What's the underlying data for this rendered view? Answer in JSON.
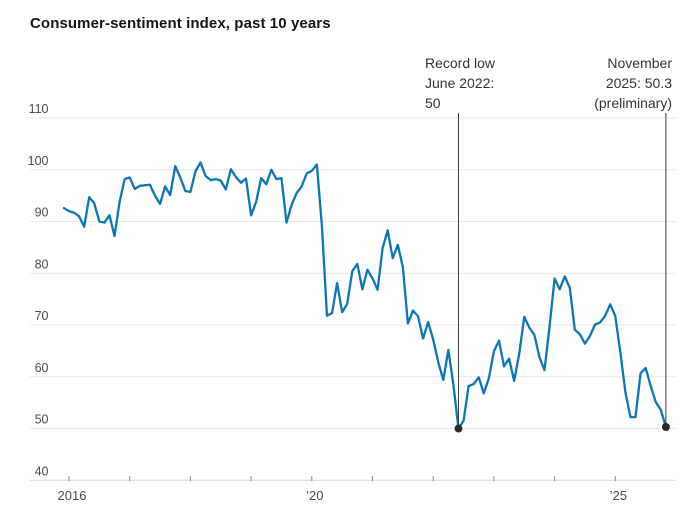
{
  "title": "Consumer-sentiment index, past 10 years",
  "colors": {
    "line": "#0f76b2",
    "grid": "#e9e9e9",
    "axis_bottom": "#d8d8d8",
    "tick": "#8c8c8c",
    "axis_label": "#4a4a4a",
    "marker": "#2b2b2b",
    "annotation_line": "#3a3a3a"
  },
  "chart_data": {
    "type": "line",
    "title": "Consumer-sentiment index, past 10 years",
    "xlabel": "",
    "ylabel": "",
    "ylim": [
      40,
      110
    ],
    "grid": "horizontal",
    "legend": "none",
    "x_start_month": "2015-12",
    "x_frequency": "monthly",
    "yticks": [
      110,
      100,
      90,
      80,
      70,
      60,
      50,
      40
    ],
    "xticks": {
      "years": [
        2016,
        2017,
        2018,
        2019,
        2020,
        2021,
        2022,
        2023,
        2024,
        2025
      ],
      "labels": [
        "2016",
        "",
        "",
        "",
        "’20",
        "",
        "",
        "",
        "",
        "’25"
      ]
    },
    "values": [
      92.6,
      92.0,
      91.7,
      91.0,
      89.0,
      94.7,
      93.5,
      90.0,
      89.8,
      91.2,
      87.2,
      93.8,
      98.2,
      98.5,
      96.3,
      96.9,
      97.0,
      97.1,
      95.0,
      93.4,
      96.8,
      95.1,
      100.7,
      98.5,
      95.9,
      95.7,
      99.7,
      101.4,
      98.8,
      98.0,
      98.2,
      97.9,
      96.2,
      100.1,
      98.6,
      97.5,
      98.3,
      91.2,
      93.8,
      98.4,
      97.2,
      100.0,
      98.2,
      98.4,
      89.8,
      93.2,
      95.5,
      96.8,
      99.3,
      99.8,
      101.0,
      89.1,
      71.8,
      72.3,
      78.1,
      72.5,
      74.1,
      80.4,
      81.8,
      76.9,
      80.7,
      79.0,
      76.8,
      84.9,
      88.3,
      82.9,
      85.5,
      81.2,
      70.3,
      72.8,
      71.7,
      67.4,
      70.6,
      67.2,
      62.8,
      59.4,
      65.2,
      58.4,
      50.0,
      51.5,
      58.2,
      58.6,
      59.9,
      56.8,
      59.7,
      64.9,
      67.0,
      62.0,
      63.5,
      59.2,
      64.4,
      71.6,
      69.5,
      68.1,
      63.8,
      61.3,
      69.7,
      79.0,
      76.9,
      79.4,
      77.2,
      69.1,
      68.2,
      66.4,
      67.9,
      70.1,
      70.5,
      71.8,
      74.0,
      71.7,
      64.7,
      57.0,
      52.2,
      52.2,
      60.7,
      61.7,
      58.2,
      55.1,
      53.6,
      50.3
    ],
    "annotations": [
      {
        "name": "record-low",
        "lines": [
          "Record low",
          "June 2022:",
          "50"
        ],
        "month": "2022-06",
        "value": 50.0,
        "align": "left"
      },
      {
        "name": "november-2025-preliminary",
        "lines": [
          "November",
          "2025: 50.3",
          "(preliminary)"
        ],
        "month": "2025-11",
        "value": 50.3,
        "align": "right"
      }
    ]
  }
}
